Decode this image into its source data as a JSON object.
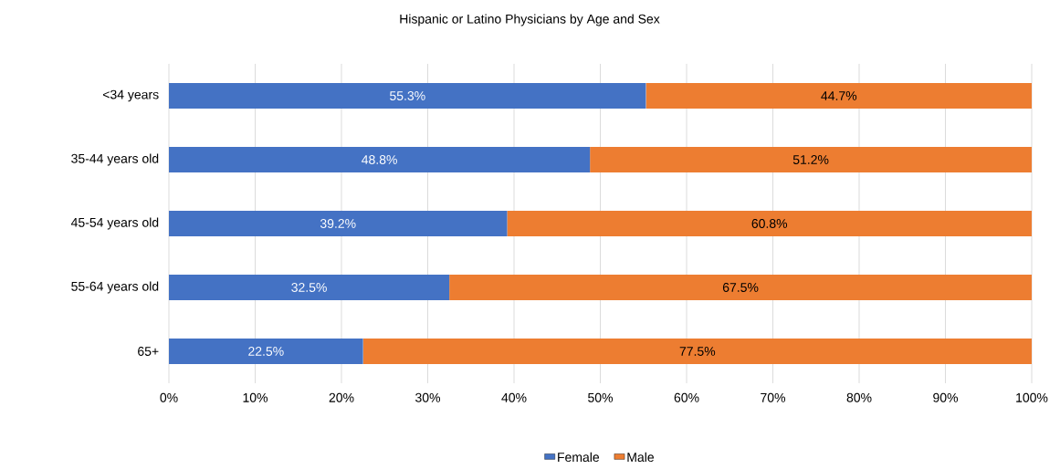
{
  "chart_data": {
    "type": "bar",
    "orientation": "horizontal",
    "stacked": true,
    "title": "Hispanic or Latino Physicians by Age and Sex",
    "categories": [
      "<34 years",
      "35-44 years old",
      "45-54 years old",
      "55-64 years old",
      "65+"
    ],
    "series": [
      {
        "name": "Female",
        "color": "#4472c4",
        "values": [
          55.3,
          48.8,
          39.2,
          32.5,
          22.5
        ],
        "value_labels": [
          "55.3%",
          "48.8%",
          "39.2%",
          "32.5%",
          "22.5%"
        ]
      },
      {
        "name": "Male",
        "color": "#ed7d31",
        "values": [
          44.7,
          51.2,
          60.8,
          67.5,
          77.5
        ],
        "value_labels": [
          "44.7%",
          "51.2%",
          "60.8%",
          "67.5%",
          "77.5%"
        ]
      }
    ],
    "xlim": [
      0,
      100
    ],
    "xticks": [
      {
        "value": 0,
        "label": "0%"
      },
      {
        "value": 10,
        "label": "10%"
      },
      {
        "value": 20,
        "label": "20%"
      },
      {
        "value": 30,
        "label": "30%"
      },
      {
        "value": 40,
        "label": "40%"
      },
      {
        "value": 50,
        "label": "50%"
      },
      {
        "value": 60,
        "label": "60%"
      },
      {
        "value": 70,
        "label": "70%"
      },
      {
        "value": 80,
        "label": "80%"
      },
      {
        "value": 90,
        "label": "90%"
      },
      {
        "value": 100,
        "label": "100%"
      }
    ],
    "grid": "x",
    "legend": "bottom"
  }
}
